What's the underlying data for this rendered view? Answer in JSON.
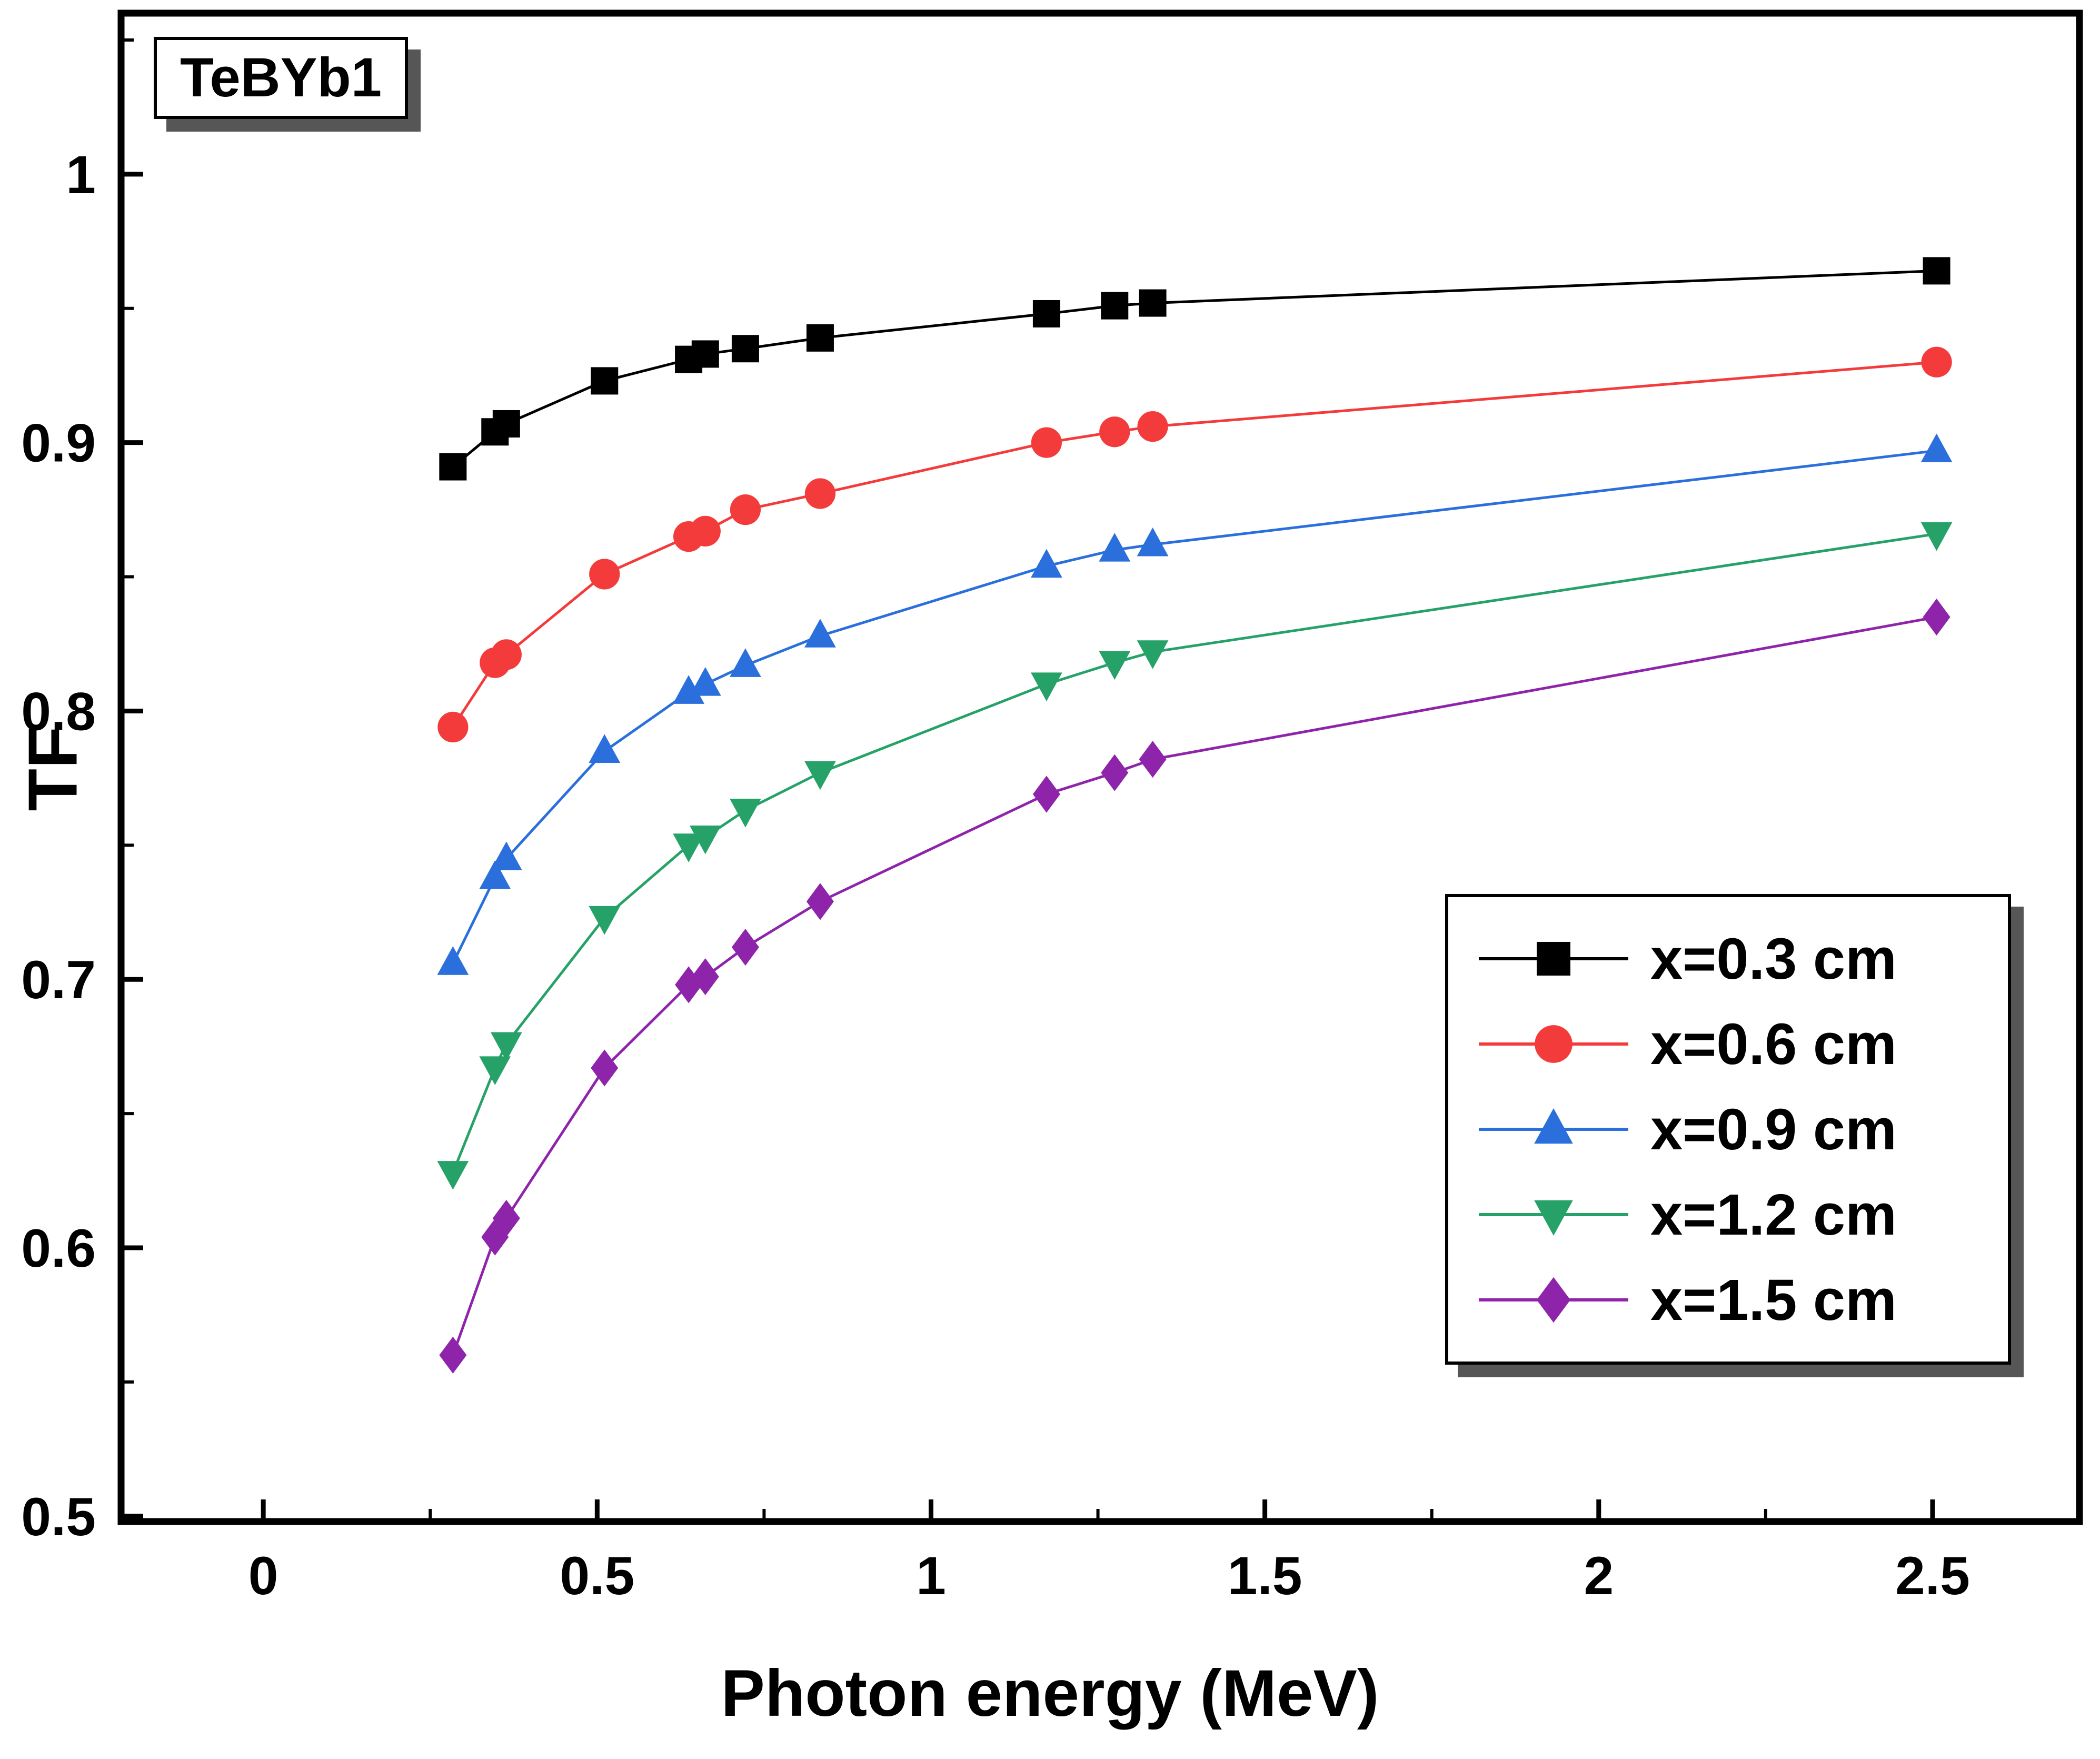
{
  "chart_data": {
    "type": "line",
    "title_box": "TeBYb1",
    "xlabel": "Photon energy (MeV)",
    "ylabel": "TF",
    "x": [
      0.284,
      0.347,
      0.364,
      0.511,
      0.637,
      0.662,
      0.722,
      0.834,
      1.173,
      1.275,
      1.332,
      2.506
    ],
    "series": [
      {
        "name": "x=0.3 cm",
        "marker": "square",
        "color": "#000000",
        "values": [
          0.891,
          0.904,
          0.907,
          0.923,
          0.931,
          0.933,
          0.935,
          0.939,
          0.948,
          0.951,
          0.952,
          0.964
        ]
      },
      {
        "name": "x=0.6 cm",
        "marker": "circle",
        "color": "#f43b3b",
        "values": [
          0.794,
          0.818,
          0.821,
          0.851,
          0.865,
          0.867,
          0.875,
          0.881,
          0.9,
          0.904,
          0.906,
          0.93
        ]
      },
      {
        "name": "x=0.9 cm",
        "marker": "triangle-up",
        "color": "#2a6fdb",
        "values": [
          0.706,
          0.738,
          0.745,
          0.785,
          0.807,
          0.81,
          0.817,
          0.828,
          0.854,
          0.86,
          0.862,
          0.897
        ]
      },
      {
        "name": "x=1.2 cm",
        "marker": "triangle-down",
        "color": "#26a269",
        "values": [
          0.628,
          0.667,
          0.676,
          0.723,
          0.75,
          0.753,
          0.763,
          0.777,
          0.81,
          0.818,
          0.822,
          0.866
        ]
      },
      {
        "name": "x=1.5 cm",
        "marker": "diamond",
        "color": "#8e24aa",
        "values": [
          0.56,
          0.604,
          0.611,
          0.667,
          0.698,
          0.701,
          0.712,
          0.729,
          0.769,
          0.777,
          0.782,
          0.835
        ]
      }
    ],
    "xticks": [
      0,
      0.5,
      1,
      1.5,
      2,
      2.5
    ],
    "xtick_labels": [
      "0",
      "0.5",
      "1",
      "1.5",
      "2",
      "2.5"
    ],
    "yticks": [
      0.5,
      0.6,
      0.7,
      0.8,
      0.9,
      1
    ],
    "ytick_labels": [
      "0.5",
      "0.6",
      "0.7",
      "0.8",
      "0.9",
      "1"
    ],
    "xlim": [
      -0.213,
      2.72
    ],
    "ylim": [
      0.498,
      1.06
    ],
    "x_minor_step": 0.25,
    "y_minor_step": 0.05,
    "grid": false,
    "legend_position": "bottom-right",
    "axis_color": "#000000"
  }
}
